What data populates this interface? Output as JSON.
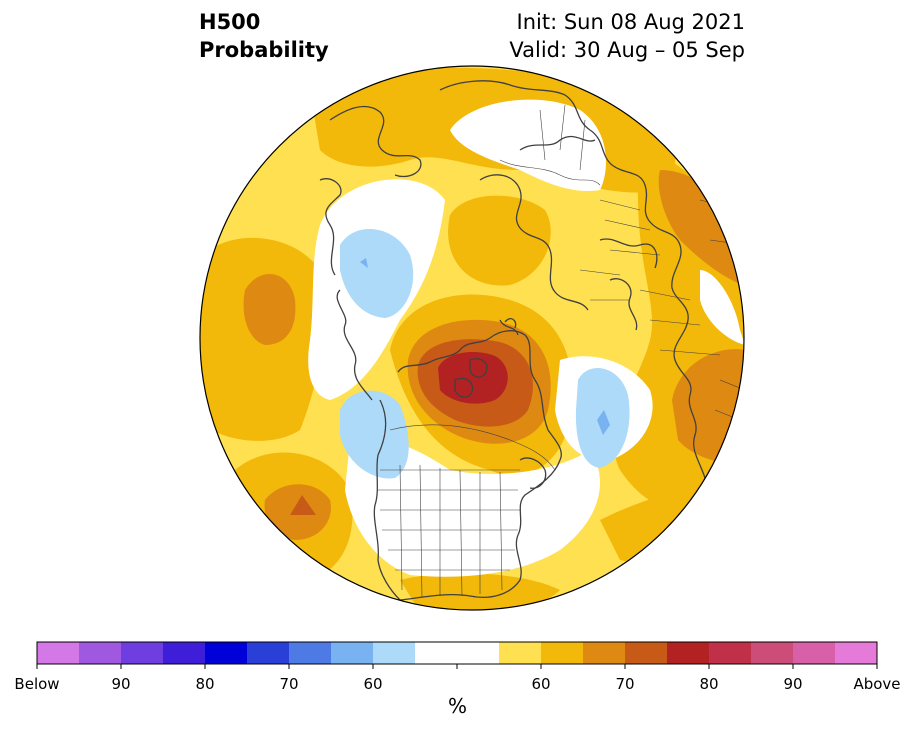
{
  "header": {
    "variable": "H500",
    "product": "Probability",
    "init": "Init: Sun 08 Aug 2021",
    "valid": "Valid: 30 Aug – 05 Sep"
  },
  "colorbar": {
    "unit": "%",
    "colors": [
      "#d478e8",
      "#a058e0",
      "#6e3ee0",
      "#3e1ed8",
      "#0000d8",
      "#2a3ed8",
      "#4e7ae6",
      "#78b2f0",
      "#acdaf8",
      "#ffffff",
      "#ffffff",
      "#ffe050",
      "#f2b80a",
      "#de8a12",
      "#c85a18",
      "#b22222",
      "#c03048",
      "#cc4e78",
      "#d860a8",
      "#e67ad8"
    ],
    "labels": [
      "Below",
      "90",
      "80",
      "70",
      "60",
      "60",
      "70",
      "80",
      "90",
      "Above"
    ]
  },
  "palette": {
    "c50": "#ffe050",
    "c60": "#f2b80a",
    "c70": "#de8a12",
    "c75": "#c85a18",
    "c80": "#b22222",
    "b55": "#acdaf8",
    "b60": "#78b2f0",
    "coast": "#404040"
  }
}
